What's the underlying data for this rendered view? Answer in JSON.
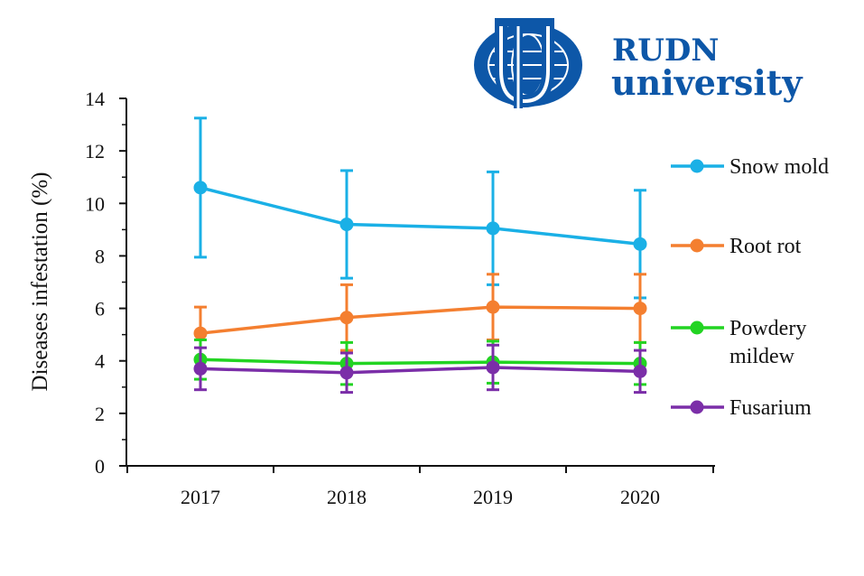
{
  "logo": {
    "line1": "RUDN",
    "line2": "university",
    "color": "#0d57a8"
  },
  "chart_data": {
    "type": "line",
    "title": "",
    "xlabel": "",
    "ylabel": "Diseases infestation (%)",
    "categories": [
      "2017",
      "2018",
      "2019",
      "2020"
    ],
    "ylim": [
      0,
      14
    ],
    "yticks": [
      0,
      2,
      4,
      6,
      8,
      10,
      12,
      14
    ],
    "error_bars": true,
    "legend_position": "right",
    "grid": false,
    "series": [
      {
        "name": "Snow mold",
        "color": "#1ab0e6",
        "values": [
          10.6,
          9.2,
          9.05,
          8.45
        ],
        "errors": [
          2.65,
          2.05,
          2.15,
          2.05
        ]
      },
      {
        "name": "Root rot",
        "color": "#f47f30",
        "values": [
          5.05,
          5.65,
          6.05,
          6.0
        ],
        "errors": [
          1.0,
          1.25,
          1.25,
          1.3
        ]
      },
      {
        "name": "Powdery mildew",
        "legend_lines": [
          "Powdery",
          "mildew"
        ],
        "color": "#22d422",
        "values": [
          4.05,
          3.9,
          3.95,
          3.9
        ],
        "errors": [
          0.75,
          0.8,
          0.8,
          0.8
        ]
      },
      {
        "name": "Fusarium",
        "color": "#7b2ea8",
        "values": [
          3.7,
          3.55,
          3.75,
          3.6
        ],
        "errors": [
          0.8,
          0.75,
          0.85,
          0.8
        ]
      }
    ]
  }
}
